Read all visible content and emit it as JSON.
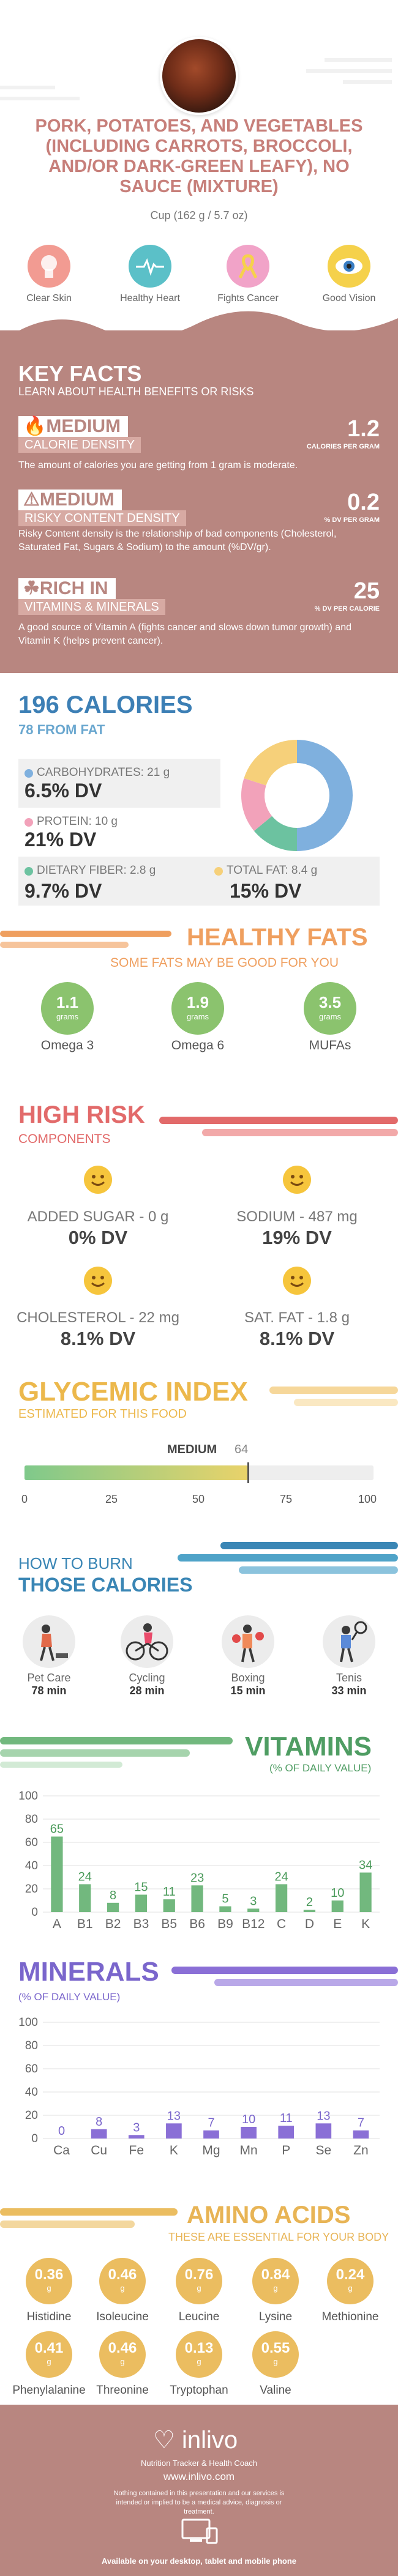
{
  "header": {
    "title": "Pork, potatoes, and vegetables (including carrots, broccoli, and/or dark-green leafy), no sauce (mixture)",
    "serving": "Cup (162 g / 5.7 oz)",
    "benefits": [
      {
        "label": "Clear Skin",
        "color": "#f29b92",
        "icon": "skin-icon"
      },
      {
        "label": "Healthy Heart",
        "color": "#5bc0c8",
        "icon": "heart-icon"
      },
      {
        "label": "Fights Cancer",
        "color": "#f1a3c8",
        "icon": "ribbon-icon"
      },
      {
        "label": "Good Vision",
        "color": "#f5d14b",
        "icon": "eye-icon"
      }
    ]
  },
  "key_facts": {
    "title": "KEY FACTS",
    "subtitle": "LEARN ABOUT HEALTH BENEFITS OR RISKS",
    "items": [
      {
        "tag": "MEDIUM",
        "name": "CALORIE DENSITY",
        "value": "1.2",
        "unit": "CALORIES PER GRAM",
        "desc": "The amount of calories you are getting from 1 gram is moderate."
      },
      {
        "tag": "MEDIUM",
        "name": "RISKY CONTENT DENSITY",
        "value": "0.2",
        "unit": "% DV PER GRAM",
        "desc": "Risky Content density is the relationship of bad components (Cholesterol, Saturated Fat, Sugars & Sodium) to the amount (%DV/gr)."
      },
      {
        "tag": "RICH IN",
        "name": "VITAMINS & MINERALS",
        "value": "25",
        "unit": "% DV PER CALORIE",
        "desc": "A good source of Vitamin A (fights cancer and slows down tumor growth) and Vitamin K (helps prevent cancer)."
      }
    ]
  },
  "calories": {
    "title": "196 CALORIES",
    "subtitle": "78 FROM FAT",
    "nutrients": [
      {
        "label": "CARBOHYDRATES: 21 g",
        "dv": "6.5% DV",
        "color": "#7fb0de"
      },
      {
        "label": "PROTEIN: 10 g",
        "dv": "21% DV",
        "color": "#f2a2ba"
      },
      {
        "label": "DIETARY FIBER: 2.8 g",
        "dv": "9.7% DV",
        "color": "#6cc2a0"
      },
      {
        "label": "TOTAL FAT: 8.4 g",
        "dv": "15% DV",
        "color": "#f6d07a"
      }
    ],
    "donut": [
      {
        "name": "CARBOHYDRATES",
        "value": 50,
        "color": "#7fb0de"
      },
      {
        "name": "PROTEIN",
        "value": 14,
        "color": "#6cc2a0"
      },
      {
        "name": "FAT",
        "value": 16,
        "color": "#f2a2ba"
      },
      {
        "name": "OTHER",
        "value": 20,
        "color": "#f6d07a"
      }
    ]
  },
  "healthy_fats": {
    "title": "HEALTHY FATS",
    "subtitle": "SOME FATS MAY BE GOOD FOR YOU",
    "unit": "grams",
    "items": [
      {
        "value": "1.1",
        "name": "Omega 3"
      },
      {
        "value": "1.9",
        "name": "Omega 6"
      },
      {
        "value": "3.5",
        "name": "MUFAs"
      }
    ]
  },
  "high_risk": {
    "title": "HIGH RISK",
    "subtitle": "COMPONENTS",
    "items": [
      {
        "label": "ADDED SUGAR - 0 g",
        "dv": "0% DV"
      },
      {
        "label": "SODIUM - 487 mg",
        "dv": "19% DV"
      },
      {
        "label": "CHOLESTEROL - 22 mg",
        "dv": "8.1% DV"
      },
      {
        "label": "SAT. FAT - 1.8 g",
        "dv": "8.1% DV"
      }
    ]
  },
  "glycemic": {
    "title": "GLYCEMIC INDEX",
    "subtitle": "ESTIMATED FOR THIS FOOD",
    "level": "MEDIUM",
    "value": 64,
    "value_text": "64",
    "ticks": [
      "0",
      "25",
      "50",
      "75",
      "100"
    ]
  },
  "burn": {
    "title1": "HOW TO BURN",
    "title2": "THOSE CALORIES",
    "activities": [
      {
        "name": "Pet Care",
        "time": "78 min",
        "icon": "walking-dog-icon"
      },
      {
        "name": "Cycling",
        "time": "28 min",
        "icon": "cycling-icon"
      },
      {
        "name": "Boxing",
        "time": "15 min",
        "icon": "boxing-icon"
      },
      {
        "name": "Tenis",
        "time": "33 min",
        "icon": "tennis-icon"
      }
    ]
  },
  "vitamins": {
    "title": "VITAMINS",
    "subtitle": "(% OF DAILY VALUE)"
  },
  "minerals": {
    "title": "MINERALS",
    "subtitle": "(% OF DAILY VALUE)"
  },
  "chart_data": [
    {
      "type": "bar",
      "title": "VITAMINS",
      "subtitle": "(% OF DAILY VALUE)",
      "categories": [
        "A",
        "B1",
        "B2",
        "B3",
        "B5",
        "B6",
        "B9",
        "B12",
        "C",
        "D",
        "E",
        "K"
      ],
      "values": [
        65,
        24,
        8,
        15,
        11,
        23,
        5,
        3,
        24,
        2,
        10,
        34
      ],
      "ylim": [
        0,
        100
      ],
      "yticks": [
        0,
        20,
        40,
        60,
        80,
        100
      ],
      "color": "#72b87e",
      "label_color": "#4a9a5a"
    },
    {
      "type": "bar",
      "title": "MINERALS",
      "subtitle": "(% OF DAILY VALUE)",
      "categories": [
        "Ca",
        "Cu",
        "Fe",
        "K",
        "Mg",
        "Mn",
        "P",
        "Se",
        "Zn"
      ],
      "values": [
        0,
        8,
        3,
        13,
        7,
        10,
        11,
        13,
        7
      ],
      "ylim": [
        0,
        100
      ],
      "yticks": [
        0,
        20,
        40,
        60,
        80,
        100
      ],
      "color": "#8a6fd6",
      "label_color": "#7a66cc"
    }
  ],
  "amino": {
    "title": "AMINO ACIDS",
    "subtitle": "THESE ARE ESSENTIAL FOR YOUR BODY",
    "unit": "g",
    "items": [
      {
        "value": "0.36",
        "name": "Histidine"
      },
      {
        "value": "0.46",
        "name": "Isoleucine"
      },
      {
        "value": "0.76",
        "name": "Leucine"
      },
      {
        "value": "0.84",
        "name": "Lysine"
      },
      {
        "value": "0.24",
        "name": "Methionine"
      },
      {
        "value": "0.41",
        "name": "Phenylalanine"
      },
      {
        "value": "0.46",
        "name": "Threonine"
      },
      {
        "value": "0.13",
        "name": "Tryptophan"
      },
      {
        "value": "0.55",
        "name": "Valine"
      }
    ]
  },
  "footer": {
    "brand": "inlivo",
    "tagline": "Nutrition Tracker & Health Coach",
    "url": "www.inlivo.com",
    "disclaimer": "Nothing contained in this presentation and our services is intended or implied to be a medical advice, diagnosis or treatment.",
    "available": "Available on your desktop, tablet and mobile phone"
  }
}
